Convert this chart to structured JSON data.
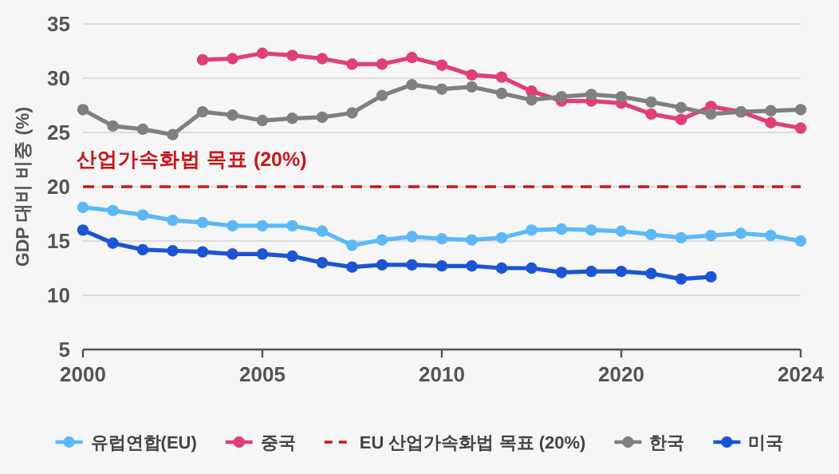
{
  "chart_data": {
    "type": "line",
    "ylabel": "GDP 대비 비중 (%)",
    "categories": [
      "2000",
      null,
      null,
      null,
      null,
      null,
      "2005",
      null,
      null,
      null,
      null,
      null,
      "2010",
      null,
      null,
      null,
      null,
      null,
      "2020",
      null,
      null,
      null,
      null,
      null,
      "2024"
    ],
    "series": [
      {
        "name": "유럽연합(EU)",
        "color": "#5cb8f7",
        "values": [
          18.1,
          17.8,
          17.4,
          16.9,
          16.7,
          16.4,
          16.4,
          16.4,
          15.9,
          14.6,
          15.1,
          15.4,
          15.2,
          15.1,
          15.3,
          16.0,
          16.1,
          16.0,
          15.9,
          15.6,
          15.3,
          15.5,
          15.7,
          15.5,
          15.0
        ]
      },
      {
        "name": "중국",
        "color": "#e03f78",
        "values": [
          null,
          null,
          null,
          null,
          31.7,
          31.8,
          32.3,
          32.1,
          31.8,
          31.3,
          31.3,
          31.9,
          31.2,
          30.3,
          30.1,
          28.8,
          27.9,
          27.9,
          27.7,
          26.7,
          26.2,
          27.4,
          26.9,
          25.9,
          25.4
        ]
      },
      {
        "name": "EU 산업가속화법 목표 (20%)",
        "color": "#c8161d",
        "line_style": "dashed",
        "marker": "none",
        "values": [
          20,
          20,
          20,
          20,
          20,
          20,
          20,
          20,
          20,
          20,
          20,
          20,
          20,
          20,
          20,
          20,
          20,
          20,
          20,
          20,
          20,
          20,
          20,
          20,
          20
        ]
      },
      {
        "name": "한국",
        "color": "#808080",
        "values": [
          27.1,
          25.6,
          25.3,
          24.8,
          26.9,
          26.6,
          26.1,
          26.3,
          26.4,
          26.8,
          28.4,
          29.4,
          29.0,
          29.2,
          28.6,
          28.0,
          28.3,
          28.5,
          28.3,
          27.8,
          27.3,
          26.7,
          26.9,
          27.0,
          27.1
        ]
      },
      {
        "name": "미국",
        "color": "#1b55d4",
        "values": [
          16.0,
          14.8,
          14.2,
          14.1,
          14.0,
          13.8,
          13.8,
          13.6,
          13.0,
          12.6,
          12.8,
          12.8,
          12.7,
          12.7,
          12.5,
          12.5,
          12.1,
          12.2,
          12.2,
          12.0,
          11.5,
          11.7,
          null,
          null,
          null
        ]
      }
    ],
    "annotations": [
      {
        "text": "산업가속화법 목표 (20%)",
        "x": "2000",
        "y": 20
      }
    ],
    "ylim": [
      5,
      35
    ],
    "yticks": [
      5,
      10,
      15,
      20,
      25,
      30,
      35
    ],
    "grid": "y",
    "legend": "bottom",
    "marker": "circle",
    "line_style": "solid"
  }
}
